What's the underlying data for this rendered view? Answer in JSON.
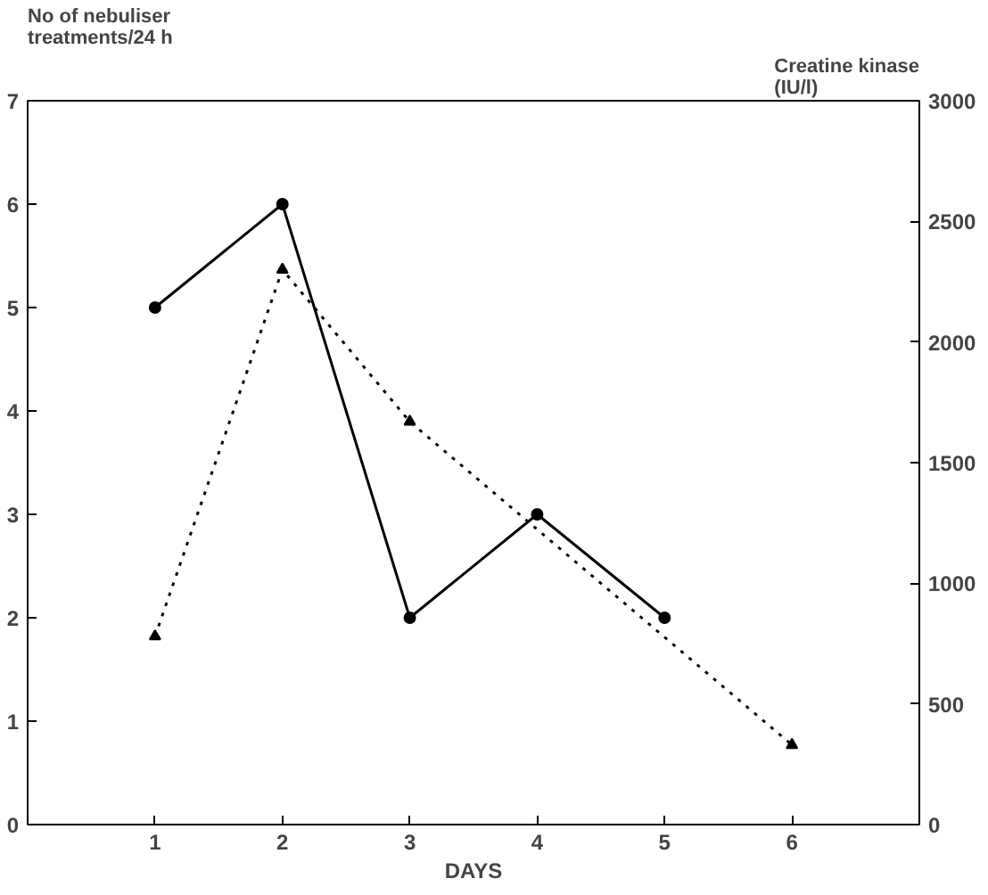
{
  "chart_data": {
    "type": "line",
    "xlabel": "DAYS",
    "ylabel": "No of nebuliser treatments/24 h",
    "y2label": "Creatine kinase (IU/l)",
    "xlim": [
      0,
      7
    ],
    "xticks": [
      1,
      2,
      3,
      4,
      5,
      6
    ],
    "ylim": [
      0,
      7
    ],
    "yticks": [
      0,
      1,
      2,
      3,
      4,
      5,
      6,
      7
    ],
    "y2lim": [
      0,
      3000
    ],
    "y2ticks": [
      0,
      500,
      1000,
      1500,
      2000,
      2500,
      3000
    ],
    "grid": false,
    "series": [
      {
        "color": "#000000",
        "marker": "circle",
        "line_style": "solid",
        "x": [
          1,
          2,
          3,
          4,
          5
        ],
        "values": [
          5,
          6,
          2,
          3,
          2
        ]
      },
      {
        "color": "#000000",
        "marker": "triangle",
        "line_style": "dotted",
        "axis": "y2",
        "x": [
          1,
          2,
          3,
          6
        ],
        "values": [
          780,
          2300,
          1670,
          330
        ]
      }
    ]
  }
}
